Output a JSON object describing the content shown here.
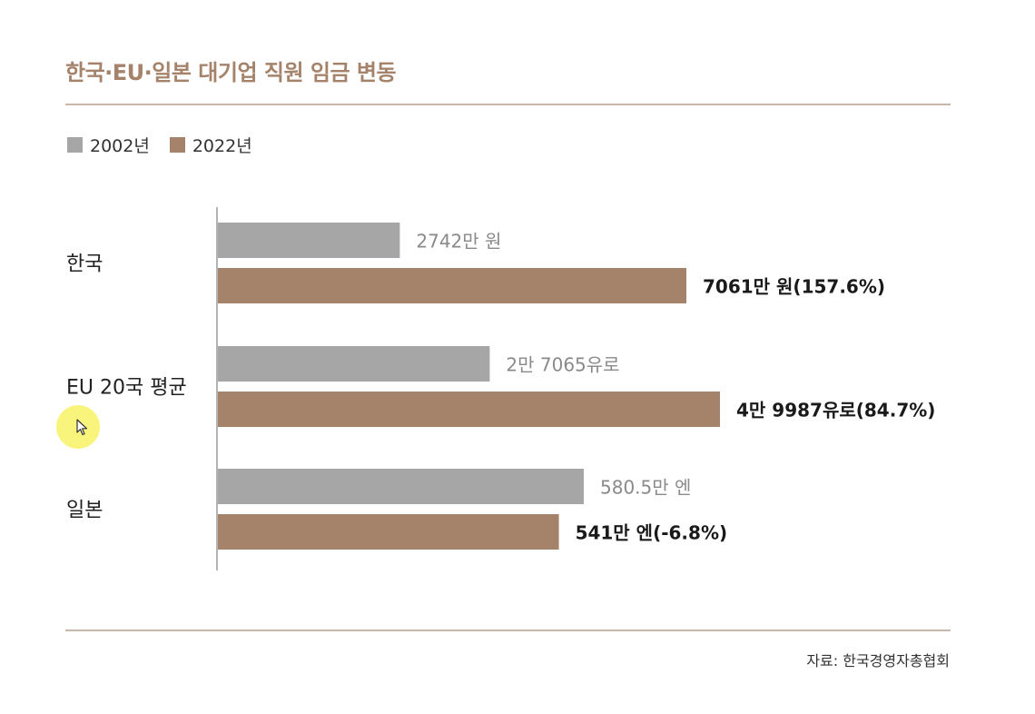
{
  "chart_data": {
    "type": "bar",
    "orientation": "horizontal",
    "title": "한국·EU·일본 대기업 직원 임금 변동",
    "categories": [
      "한국",
      "EU 20국 평균",
      "일본"
    ],
    "series": [
      {
        "name": "2002년",
        "color": "#a6a6a6",
        "values": [
          2742,
          27065,
          580.5
        ],
        "labels": [
          "2742만 원",
          "2만 7065유로",
          "580.5만 엔"
        ]
      },
      {
        "name": "2022년",
        "color": "#a5836b",
        "values": [
          7061,
          49987,
          541
        ],
        "labels": [
          "7061만 원(157.6%)",
          "4만 9987유로(84.7%)",
          "541만 엔(-6.8%)"
        ]
      }
    ],
    "source": "자료: 한국경영자총협회"
  }
}
